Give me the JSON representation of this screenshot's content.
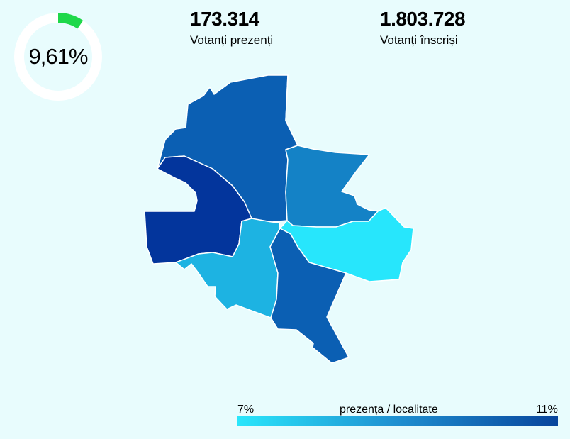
{
  "turnout": {
    "percent_label": "9,61%",
    "fraction": 0.0961,
    "ring_color": "#1fd84a",
    "track_color": "#ffffff"
  },
  "stats": {
    "present": {
      "value": "173.314",
      "label": "Votanți prezenți"
    },
    "registered": {
      "value": "1.803.728",
      "label": "Votanți înscriși"
    }
  },
  "map": {
    "sectors": [
      {
        "name": "north-sector",
        "color": "#0b5fb3"
      },
      {
        "name": "west-sector",
        "color": "#03359c"
      },
      {
        "name": "east-sector",
        "color": "#1482c6"
      },
      {
        "name": "southeast-sector",
        "color": "#27e6fc"
      },
      {
        "name": "southwest-sector",
        "color": "#1db3e2"
      },
      {
        "name": "south-sector",
        "color": "#0b5fb3"
      }
    ]
  },
  "legend": {
    "min_label": "7%",
    "title": "prezența / localitate",
    "max_label": "11%",
    "color_min": "#2ae6fb",
    "color_max": "#08459c"
  }
}
